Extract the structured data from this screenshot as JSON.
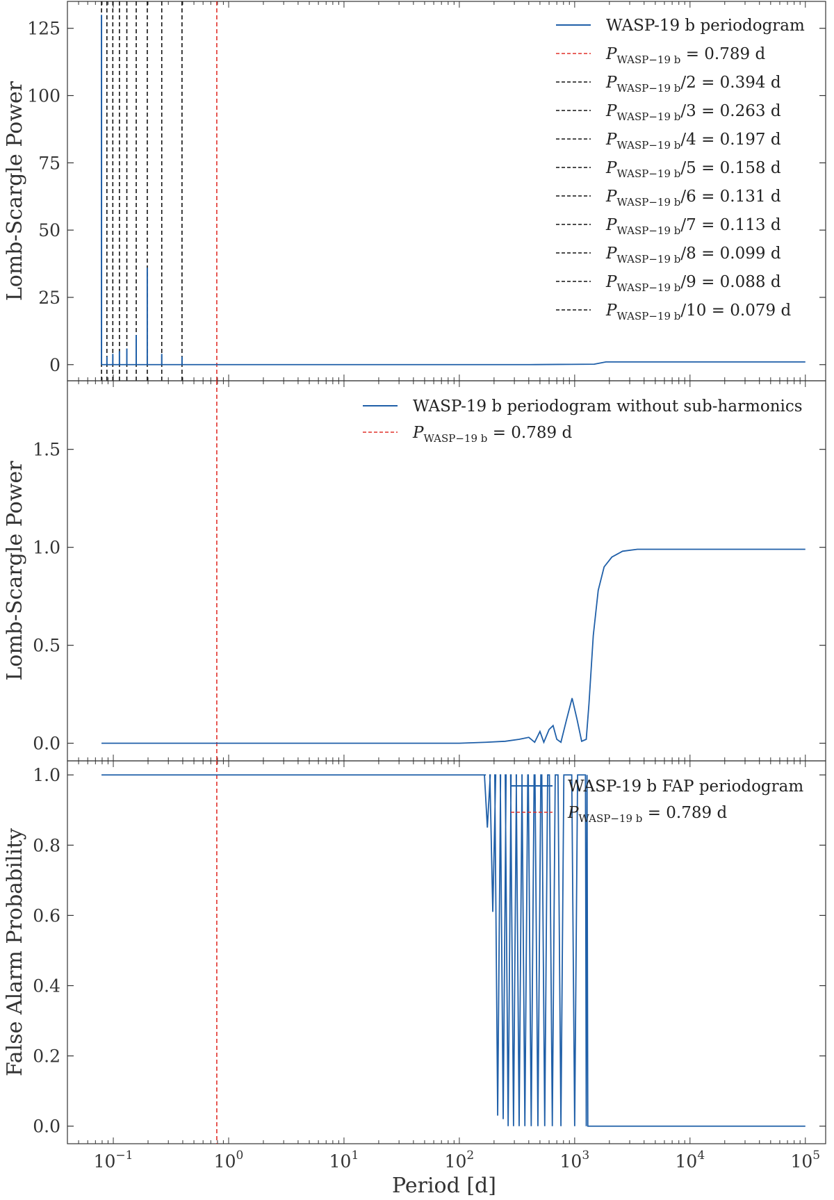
{
  "colors": {
    "line": "#1f5fa8",
    "red": "#e0302a",
    "black": "#111111",
    "text": "#333333"
  },
  "xaxis": {
    "label": "Period [d]",
    "scale": "log",
    "xlim": [
      0.04,
      150000
    ],
    "ticks": [
      {
        "v": 0.1,
        "base": "10",
        "exp": "−1"
      },
      {
        "v": 1,
        "base": "10",
        "exp": "0"
      },
      {
        "v": 10,
        "base": "10",
        "exp": "1"
      },
      {
        "v": 100,
        "base": "10",
        "exp": "2"
      },
      {
        "v": 1000,
        "base": "10",
        "exp": "3"
      },
      {
        "v": 10000,
        "base": "10",
        "exp": "4"
      },
      {
        "v": 100000,
        "base": "10",
        "exp": "5"
      }
    ]
  },
  "chart_data": [
    {
      "type": "line",
      "ylabel": "Lomb-Scargle Power",
      "ylim": [
        -6,
        135
      ],
      "yticks": [
        "0",
        "25",
        "50",
        "75",
        "100",
        "125"
      ],
      "series": [
        {
          "name": "WASP-19 b periodogram",
          "x": [
            0.079,
            100000
          ],
          "values": [
            0,
            1
          ]
        }
      ],
      "peaks": [
        {
          "x": 0.079,
          "value": 130
        },
        {
          "x": 0.088,
          "value": 3
        },
        {
          "x": 0.099,
          "value": 4
        },
        {
          "x": 0.113,
          "value": 5
        },
        {
          "x": 0.131,
          "value": 6
        },
        {
          "x": 0.158,
          "value": 11
        },
        {
          "x": 0.197,
          "value": 36
        },
        {
          "x": 0.263,
          "value": 4
        },
        {
          "x": 0.394,
          "value": 3
        }
      ],
      "vlines": [
        {
          "x": 0.789,
          "color": "red",
          "label_main": "P",
          "label_sub": "WASP−19 b",
          "label_rest": " = 0.789 d"
        },
        {
          "x": 0.394,
          "color": "black",
          "label_main": "P",
          "label_sub": "WASP−19 b",
          "label_rest": "/2 = 0.394 d"
        },
        {
          "x": 0.263,
          "color": "black",
          "label_main": "P",
          "label_sub": "WASP−19 b",
          "label_rest": "/3 = 0.263 d"
        },
        {
          "x": 0.197,
          "color": "black",
          "label_main": "P",
          "label_sub": "WASP−19 b",
          "label_rest": "/4 = 0.197 d"
        },
        {
          "x": 0.158,
          "color": "black",
          "label_main": "P",
          "label_sub": "WASP−19 b",
          "label_rest": "/5 = 0.158 d"
        },
        {
          "x": 0.131,
          "color": "black",
          "label_main": "P",
          "label_sub": "WASP−19 b",
          "label_rest": "/6 = 0.131 d"
        },
        {
          "x": 0.113,
          "color": "black",
          "label_main": "P",
          "label_sub": "WASP−19 b",
          "label_rest": "/7 = 0.113 d"
        },
        {
          "x": 0.099,
          "color": "black",
          "label_main": "P",
          "label_sub": "WASP−19 b",
          "label_rest": "/8 = 0.099 d"
        },
        {
          "x": 0.088,
          "color": "black",
          "label_main": "P",
          "label_sub": "WASP−19 b",
          "label_rest": "/9 = 0.088 d"
        },
        {
          "x": 0.079,
          "color": "black",
          "label_main": "P",
          "label_sub": "WASP−19 b",
          "label_rest": "/10 = 0.079 d"
        }
      ],
      "legend": "top-right"
    },
    {
      "type": "line",
      "ylabel": "Lomb-Scargle Power",
      "ylim": [
        -0.09,
        1.85
      ],
      "yticks": [
        "0.0",
        "0.5",
        "1.0",
        "1.5"
      ],
      "series": [
        {
          "name": "WASP-19 b periodogram without sub-harmonics",
          "x": [
            0.079,
            100,
            170,
            250,
            330,
            400,
            450,
            500,
            540,
            600,
            650,
            700,
            760,
            850,
            950,
            1050,
            1150,
            1260,
            1330,
            1450,
            1600,
            1800,
            2100,
            2600,
            3500,
            5000,
            10000,
            100000
          ],
          "values": [
            0.0,
            0.0,
            0.005,
            0.01,
            0.02,
            0.03,
            0.005,
            0.06,
            0.005,
            0.07,
            0.09,
            0.02,
            0.005,
            0.12,
            0.23,
            0.12,
            0.01,
            0.02,
            0.2,
            0.55,
            0.78,
            0.9,
            0.95,
            0.98,
            0.99,
            0.99,
            0.99,
            0.99
          ]
        }
      ],
      "vlines": [
        {
          "x": 0.789,
          "color": "red",
          "label_main": "P",
          "label_sub": "WASP−19 b",
          "label_rest": " = 0.789 d"
        }
      ],
      "legend": "top-right"
    },
    {
      "type": "line",
      "ylabel": "False Alarm Probability",
      "ylim": [
        -0.05,
        1.04
      ],
      "yticks": [
        "0.0",
        "0.2",
        "0.4",
        "0.6",
        "0.8",
        "1.0"
      ],
      "series": [
        {
          "name": "WASP-19 b FAP periodogram",
          "x": [
            0.079,
            170,
            1300,
            100000
          ],
          "values": [
            1.0,
            1.0,
            0.0,
            0.0
          ]
        }
      ],
      "fap_dips": [
        {
          "x": 175,
          "value": 0.85
        },
        {
          "x": 195,
          "value": 0.61
        },
        {
          "x": 215,
          "value": 0.03
        },
        {
          "x": 240,
          "value": 0.02
        },
        {
          "x": 265,
          "value": 0.0
        },
        {
          "x": 295,
          "value": 0.0
        },
        {
          "x": 330,
          "value": 0.0
        },
        {
          "x": 370,
          "value": 0.0
        },
        {
          "x": 420,
          "value": 0.0
        },
        {
          "x": 480,
          "value": 0.0
        },
        {
          "x": 550,
          "value": 0.0
        },
        {
          "x": 640,
          "value": 0.0
        },
        {
          "x": 760,
          "value": 0.0
        },
        {
          "x": 1000,
          "value": 0.0
        }
      ],
      "vlines": [
        {
          "x": 0.789,
          "color": "red",
          "label_main": "P",
          "label_sub": "WASP−19 b",
          "label_rest": " = 0.789 d"
        }
      ],
      "legend": "top-right"
    }
  ]
}
